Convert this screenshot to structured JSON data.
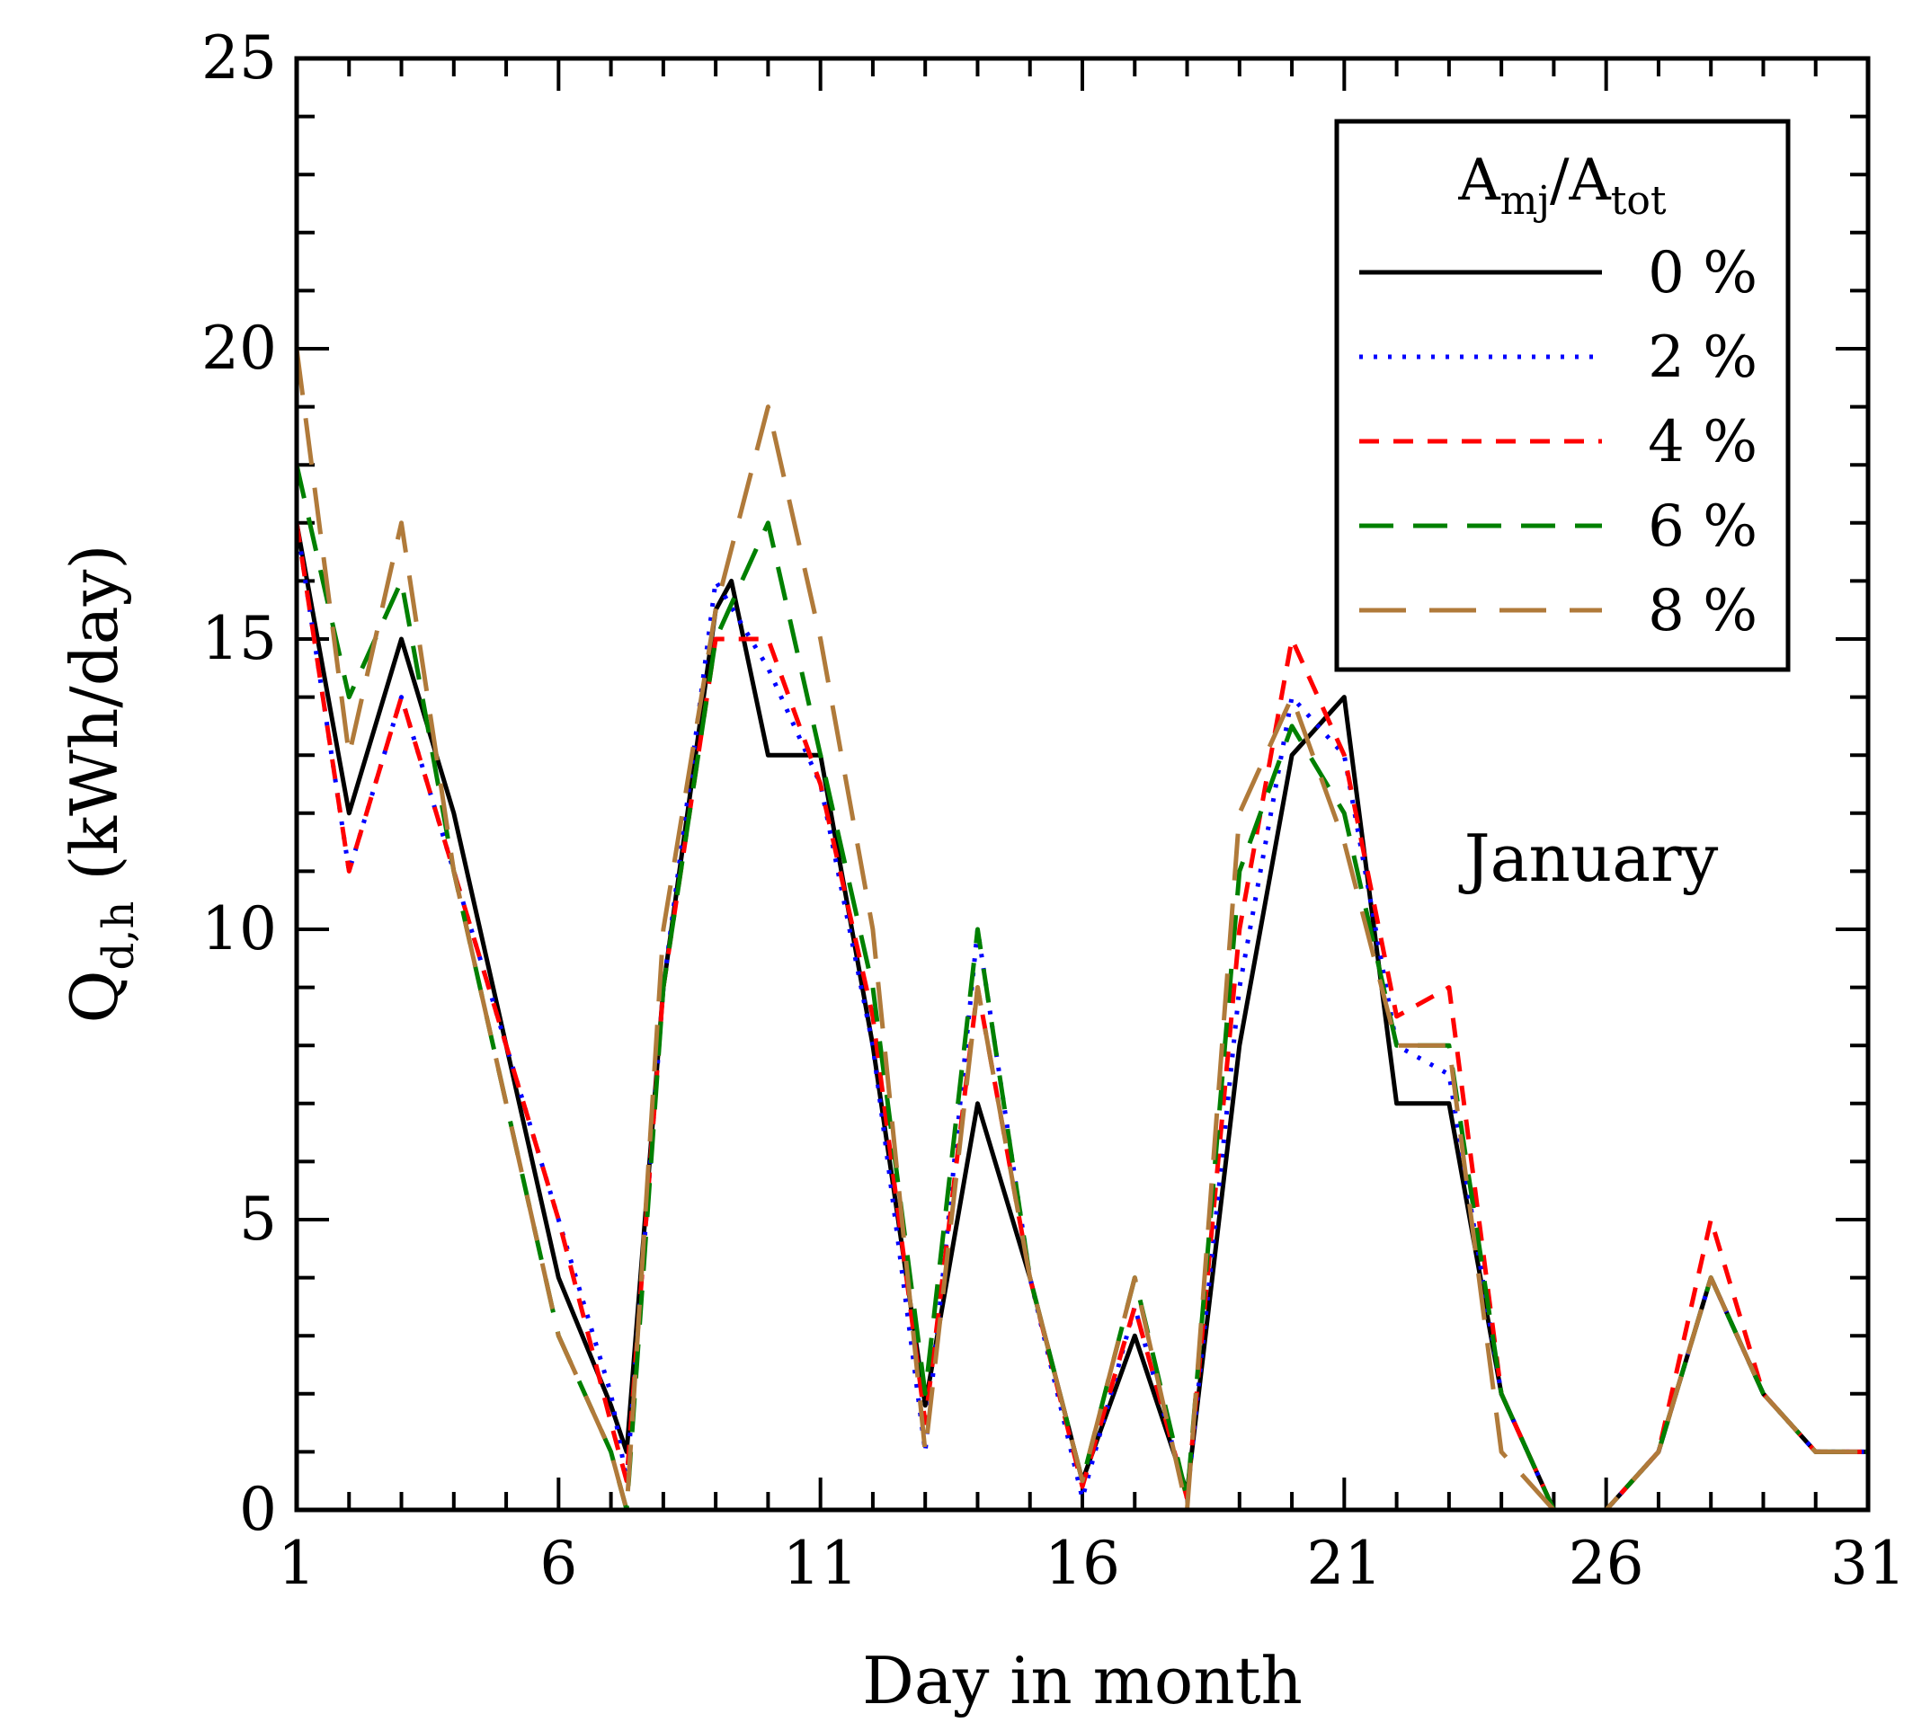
{
  "chart_data": {
    "type": "line",
    "title": "",
    "xlabel": "Day in month",
    "ylabel": "Q",
    "ylabel_sub": "d,h",
    "ylabel_unit": " (kWh/day)",
    "xlim": [
      1,
      31
    ],
    "ylim": [
      0,
      25
    ],
    "xticks": [
      1,
      6,
      11,
      16,
      21,
      26,
      31
    ],
    "yticks": [
      0,
      5,
      10,
      15,
      20,
      25
    ],
    "annotation": "January",
    "legend": {
      "title_main": "A",
      "title_sub1": "mj",
      "title_slash": "/A",
      "title_sub2": "tot",
      "position": "top-right"
    },
    "series": [
      {
        "name": "0 %",
        "color": "#000000",
        "dash": "solid",
        "x": [
          1,
          2,
          3,
          4,
          5,
          6,
          7,
          7.3,
          8,
          9,
          9.3,
          10,
          11,
          12,
          13,
          14,
          15,
          16,
          17,
          18,
          19,
          20,
          21,
          22,
          23,
          24,
          25,
          26,
          27,
          28,
          29,
          30,
          31
        ],
        "y": [
          17,
          12,
          15,
          12,
          8,
          4,
          1.8,
          1,
          9,
          15.5,
          16,
          13,
          13,
          8,
          1.8,
          7,
          4,
          0.5,
          3,
          0.3,
          8,
          13,
          14,
          7,
          7,
          2,
          0,
          0,
          1,
          4,
          2,
          1,
          1
        ]
      },
      {
        "name": "2 %",
        "color": "#0000ff",
        "dash": "dotted",
        "x": [
          1,
          2,
          3,
          4,
          5,
          6,
          7,
          7.3,
          8,
          9,
          10,
          11,
          12,
          13,
          14,
          15,
          16,
          17,
          18,
          19,
          20,
          21,
          22,
          23,
          24,
          25,
          26,
          27,
          28,
          29,
          30,
          31
        ],
        "y": [
          17,
          11,
          14,
          11,
          8,
          5,
          2,
          0.5,
          9,
          16,
          14.5,
          12.5,
          8,
          1,
          10,
          4,
          0.2,
          3.5,
          0.2,
          9,
          14,
          13,
          8,
          7.5,
          2,
          0,
          0,
          1,
          4,
          2,
          1,
          1
        ]
      },
      {
        "name": "4 %",
        "color": "#ff0000",
        "dash": "dashed",
        "x": [
          1,
          2,
          3,
          4,
          5,
          6,
          7,
          7.3,
          8,
          9,
          10,
          11,
          12,
          13,
          14,
          15,
          16,
          17,
          18,
          19,
          20,
          21,
          22,
          23,
          24,
          25,
          26,
          27,
          28,
          29,
          30,
          31
        ],
        "y": [
          17,
          11,
          14,
          11,
          8,
          5,
          1.5,
          0.5,
          9,
          15,
          15,
          12.5,
          8.5,
          1.5,
          9,
          4,
          0.4,
          3.5,
          0.2,
          10,
          15,
          13,
          8.5,
          9,
          2,
          0,
          0,
          1,
          5,
          2,
          1,
          1
        ]
      },
      {
        "name": "6 %",
        "color": "#008000",
        "dash": "longdash",
        "x": [
          1,
          2,
          3,
          4,
          5,
          6,
          7,
          7.3,
          8,
          9,
          10,
          11,
          12,
          13,
          14,
          15,
          16,
          17,
          18,
          19,
          20,
          21,
          22,
          23,
          24,
          25,
          26,
          27,
          28,
          29,
          30,
          31
        ],
        "y": [
          18,
          14,
          16,
          11,
          7,
          3,
          1,
          0,
          9,
          15,
          17,
          13,
          9,
          2,
          10,
          4,
          0.5,
          4,
          0.2,
          11,
          13.5,
          12,
          8,
          8,
          2,
          0,
          0,
          1,
          4,
          2,
          1,
          1
        ]
      },
      {
        "name": "8 %",
        "color": "#b07a3a",
        "dash": "longdash2",
        "x": [
          1,
          2,
          3,
          4,
          5,
          6,
          7,
          7.3,
          8,
          9,
          10,
          11,
          12,
          13,
          14,
          15,
          16,
          17,
          18,
          19,
          20,
          21,
          22,
          23,
          24,
          25,
          26,
          27,
          28,
          29,
          30,
          31
        ],
        "y": [
          20,
          13,
          17,
          11,
          7,
          3,
          1,
          0,
          10,
          15.5,
          19,
          15,
          10,
          1,
          9,
          4,
          0.5,
          4,
          0,
          12,
          14,
          11.5,
          8,
          8,
          1,
          0,
          0,
          1,
          4,
          2,
          1,
          1
        ]
      }
    ]
  }
}
